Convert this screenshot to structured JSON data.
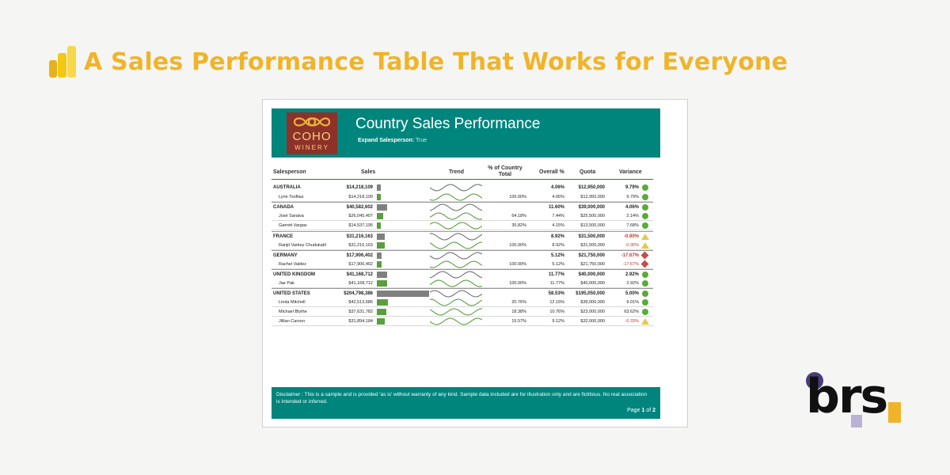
{
  "headline": "A Sales Performance Table That Works for Everyone",
  "report": {
    "logo_main": "COHO",
    "logo_sub": "WINERY",
    "title": "Country Sales Performance",
    "expand_label": "Expand Salesperson:",
    "expand_value": "True",
    "columns": {
      "salesperson": "Salesperson",
      "sales": "Sales",
      "trend": "Trend",
      "pct_country": "% of Country Total",
      "overall": "Overall %",
      "quota": "Quota",
      "variance": "Variance"
    },
    "rows": [
      {
        "type": "country",
        "name": "AUSTRALIA",
        "sales": "$14,218,109",
        "bar": 14218109,
        "pct": "",
        "overall": "4.06%",
        "quota": "$12,950,000",
        "variance": "9.79%",
        "indicator": "green",
        "neg": false
      },
      {
        "type": "person",
        "name": "Lynn Tsoflias",
        "sales": "$14,218,109",
        "bar": 14218109,
        "pct": "100.00%",
        "overall": "4.06%",
        "quota": "$12,950,000",
        "variance": "9.79%",
        "indicator": "green",
        "neg": false
      },
      {
        "type": "country",
        "name": "CANADA",
        "sales": "$40,582,602",
        "bar": 40582602,
        "pct": "",
        "overall": "11.60%",
        "quota": "$39,000,000",
        "variance": "4.06%",
        "indicator": "green",
        "neg": false
      },
      {
        "type": "person",
        "name": "José Saraiva",
        "sales": "$26,045,407",
        "bar": 26045407,
        "pct": "64.18%",
        "overall": "7.44%",
        "quota": "$25,500,000",
        "variance": "2.14%",
        "indicator": "green",
        "neg": false
      },
      {
        "type": "person",
        "name": "Garrett Vargas",
        "sales": "$14,537,195",
        "bar": 14537195,
        "pct": "35.82%",
        "overall": "4.15%",
        "quota": "$13,500,000",
        "variance": "7.68%",
        "indicator": "green",
        "neg": false
      },
      {
        "type": "country",
        "name": "FRANCE",
        "sales": "$31,216,163",
        "bar": 31216163,
        "pct": "",
        "overall": "8.92%",
        "quota": "$31,500,000",
        "variance": "-0.90%",
        "indicator": "yellow",
        "neg": true
      },
      {
        "type": "person",
        "name": "Ranjit Varkey Chudukatil",
        "sales": "$31,216,163",
        "bar": 31216163,
        "pct": "100.00%",
        "overall": "8.92%",
        "quota": "$31,500,000",
        "variance": "-0.90%",
        "indicator": "yellow",
        "neg": true
      },
      {
        "type": "country",
        "name": "GERMANY",
        "sales": "$17,906,402",
        "bar": 17906402,
        "pct": "",
        "overall": "5.12%",
        "quota": "$21,750,000",
        "variance": "-17.67%",
        "indicator": "red",
        "neg": true
      },
      {
        "type": "person",
        "name": "Rachel Valdez",
        "sales": "$17,906,402",
        "bar": 17906402,
        "pct": "100.00%",
        "overall": "5.12%",
        "quota": "$21,750,000",
        "variance": "-17.67%",
        "indicator": "red",
        "neg": true
      },
      {
        "type": "country",
        "name": "UNITED KINGDOM",
        "sales": "$41,168,712",
        "bar": 41168712,
        "pct": "",
        "overall": "11.77%",
        "quota": "$40,000,000",
        "variance": "2.92%",
        "indicator": "green",
        "neg": false
      },
      {
        "type": "person",
        "name": "Jae Pak",
        "sales": "$41,168,712",
        "bar": 41168712,
        "pct": "100.00%",
        "overall": "11.77%",
        "quota": "$40,000,000",
        "variance": "2.92%",
        "indicator": "green",
        "neg": false
      },
      {
        "type": "country",
        "name": "UNITED STATES",
        "sales": "$204,798,386",
        "bar": 204798386,
        "pct": "",
        "overall": "58.53%",
        "quota": "$195,050,000",
        "variance": "5.00%",
        "indicator": "green",
        "neg": false
      },
      {
        "type": "person",
        "name": "Linda Mitchell",
        "sales": "$42,513,686",
        "bar": 42513686,
        "pct": "20.76%",
        "overall": "12.15%",
        "quota": "$39,000,000",
        "variance": "9.01%",
        "indicator": "green",
        "neg": false
      },
      {
        "type": "person",
        "name": "Michael Blythe",
        "sales": "$37,631,782",
        "bar": 37631782,
        "pct": "18.38%",
        "overall": "10.76%",
        "quota": "$23,000,000",
        "variance": "63.62%",
        "indicator": "green",
        "neg": false
      },
      {
        "type": "person",
        "name": "Jillian Carson",
        "sales": "$31,894,184",
        "bar": 31894184,
        "pct": "15.57%",
        "overall": "9.12%",
        "quota": "$32,000,000",
        "variance": "-0.33%",
        "indicator": "yellow",
        "neg": true
      }
    ],
    "disclaimer": "Disclaimer : This is a sample and is provided 'as is' without warranty of any kind.  Sample data included are for illustration only and are fictitious.  No real association is intended or inferred.",
    "page_label": "Page",
    "page_current": "1",
    "page_of": "of",
    "page_total": "2"
  },
  "colors": {
    "teal": "#00857d",
    "bar_country": "#808080",
    "bar_person": "#5b9e3f",
    "headline": "#f0b429"
  },
  "brand": "brs"
}
